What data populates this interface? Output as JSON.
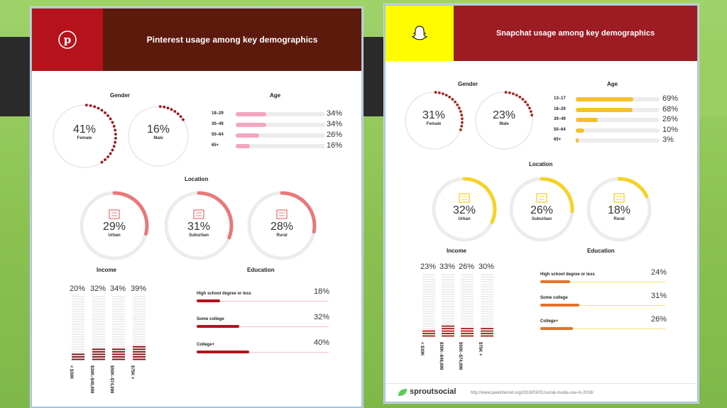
{
  "pinterest": {
    "title": "Pinterest usage among key demographics",
    "colors": {
      "header_dark": "#5c1a0c",
      "header_logo": "#b5121b",
      "accent": "#e8787a",
      "age_bar": "#f4a5bf",
      "income": "#7a1414",
      "edu": "#b2131e",
      "edu_track": "#f2c1c4"
    },
    "gender": {
      "heading": "Gender",
      "items": [
        {
          "value": "41%",
          "label": "Female",
          "pct": 0.41
        },
        {
          "value": "16%",
          "label": "Male",
          "pct": 0.16
        }
      ]
    },
    "age": {
      "heading": "Age",
      "items": [
        {
          "label": "18–29",
          "value": "34%",
          "pct": 0.34
        },
        {
          "label": "30–49",
          "value": "34%",
          "pct": 0.34
        },
        {
          "label": "50–64",
          "value": "26%",
          "pct": 0.26
        },
        {
          "label": "65+",
          "value": "16%",
          "pct": 0.16
        }
      ]
    },
    "location": {
      "heading": "Location",
      "items": [
        {
          "value": "29%",
          "label": "Urban",
          "pct": 0.29
        },
        {
          "value": "31%",
          "label": "Suburban",
          "pct": 0.31
        },
        {
          "value": "28%",
          "label": "Rural",
          "pct": 0.28
        }
      ]
    },
    "income": {
      "heading": "Income",
      "items": [
        {
          "value": "20%",
          "label": "< $30K",
          "pct": 0.2
        },
        {
          "value": "32%",
          "label": "$30K–$49,999",
          "pct": 0.32
        },
        {
          "value": "34%",
          "label": "$50K–$74,999",
          "pct": 0.34
        },
        {
          "value": "39%",
          "label": "$75K +",
          "pct": 0.39
        }
      ]
    },
    "education": {
      "heading": "Education",
      "items": [
        {
          "label": "High school degree or less",
          "value": "18%",
          "pct": 0.18
        },
        {
          "label": "Some college",
          "value": "32%",
          "pct": 0.32
        },
        {
          "label": "College+",
          "value": "40%",
          "pct": 0.4
        }
      ]
    }
  },
  "snapchat": {
    "title": "Snapchat usage among key demographics",
    "colors": {
      "header_dark": "#9b1c22",
      "header_logo": "#fffc00",
      "accent": "#f5d327",
      "age_bar": "#f5c02a",
      "income": "#a3261c",
      "edu": "#e2732c",
      "edu_track": "#f7e27d"
    },
    "gender": {
      "heading": "Gender",
      "items": [
        {
          "value": "31%",
          "label": "Female",
          "pct": 0.31
        },
        {
          "value": "23%",
          "label": "Male",
          "pct": 0.23
        }
      ]
    },
    "age": {
      "heading": "Age",
      "items": [
        {
          "label": "13–17",
          "value": "69%",
          "pct": 0.69
        },
        {
          "label": "18–29",
          "value": "68%",
          "pct": 0.68
        },
        {
          "label": "30–49",
          "value": "26%",
          "pct": 0.26
        },
        {
          "label": "50–64",
          "value": "10%",
          "pct": 0.1
        },
        {
          "label": "65+",
          "value": "3%",
          "pct": 0.03
        }
      ]
    },
    "location": {
      "heading": "Location",
      "items": [
        {
          "value": "32%",
          "label": "Urban",
          "pct": 0.32
        },
        {
          "value": "26%",
          "label": "Suburban",
          "pct": 0.26
        },
        {
          "value": "18%",
          "label": "Rural",
          "pct": 0.18
        }
      ]
    },
    "income": {
      "heading": "Income",
      "items": [
        {
          "value": "23%",
          "label": "< $30K",
          "pct": 0.23
        },
        {
          "value": "33%",
          "label": "$30K–$49,999",
          "pct": 0.33
        },
        {
          "value": "26%",
          "label": "$50K–$74,999",
          "pct": 0.26
        },
        {
          "value": "30%",
          "label": "$75K +",
          "pct": 0.3
        }
      ]
    },
    "education": {
      "heading": "Education",
      "items": [
        {
          "label": "High school degree or less",
          "value": "24%",
          "pct": 0.24
        },
        {
          "label": "Some college",
          "value": "31%",
          "pct": 0.31
        },
        {
          "label": "College+",
          "value": "26%",
          "pct": 0.26
        }
      ]
    },
    "footer": {
      "brand": "sproutsocial",
      "url": "http://www.pewinternet.org/2018/03/01/social-media-use-in-2018/"
    }
  },
  "chart_data": [
    {
      "type": "bar",
      "title": "Pinterest usage among key demographics",
      "series": [
        {
          "name": "Gender",
          "categories": [
            "Female",
            "Male"
          ],
          "values": [
            41,
            16
          ]
        },
        {
          "name": "Age",
          "categories": [
            "18–29",
            "30–49",
            "50–64",
            "65+"
          ],
          "values": [
            34,
            34,
            26,
            16
          ]
        },
        {
          "name": "Location",
          "categories": [
            "Urban",
            "Suburban",
            "Rural"
          ],
          "values": [
            29,
            31,
            28
          ]
        },
        {
          "name": "Income",
          "categories": [
            "< $30K",
            "$30K–$49,999",
            "$50K–$74,999",
            "$75K +"
          ],
          "values": [
            20,
            32,
            34,
            39
          ]
        },
        {
          "name": "Education",
          "categories": [
            "High school degree or less",
            "Some college",
            "College+"
          ],
          "values": [
            18,
            32,
            40
          ]
        }
      ]
    },
    {
      "type": "bar",
      "title": "Snapchat usage among key demographics",
      "series": [
        {
          "name": "Gender",
          "categories": [
            "Female",
            "Male"
          ],
          "values": [
            31,
            23
          ]
        },
        {
          "name": "Age",
          "categories": [
            "13–17",
            "18–29",
            "30–49",
            "50–64",
            "65+"
          ],
          "values": [
            69,
            68,
            26,
            10,
            3
          ]
        },
        {
          "name": "Location",
          "categories": [
            "Urban",
            "Suburban",
            "Rural"
          ],
          "values": [
            32,
            26,
            18
          ]
        },
        {
          "name": "Income",
          "categories": [
            "< $30K",
            "$30K–$49,999",
            "$50K–$74,999",
            "$75K +"
          ],
          "values": [
            23,
            33,
            26,
            30
          ]
        },
        {
          "name": "Education",
          "categories": [
            "High school degree or less",
            "Some college",
            "College+"
          ],
          "values": [
            24,
            31,
            26
          ]
        }
      ]
    }
  ]
}
